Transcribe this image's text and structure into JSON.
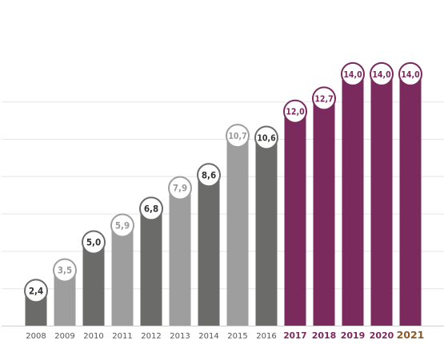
{
  "chart_data": {
    "type": "bar",
    "categories": [
      "2008",
      "2009",
      "2010",
      "2011",
      "2012",
      "2013",
      "2014",
      "2015",
      "2016",
      "2017",
      "2018",
      "2019",
      "2020",
      "2021"
    ],
    "values": [
      2.4,
      3.5,
      5.0,
      5.9,
      6.8,
      7.9,
      8.6,
      10.7,
      10.6,
      12.0,
      12.7,
      14.0,
      14.0,
      14.0
    ],
    "data_labels": [
      "2,4",
      "3,5",
      "5,0",
      "5,9",
      "6,8",
      "7,9",
      "8,6",
      "10,7",
      "10,6",
      "12,0",
      "12,7",
      "14,0",
      "14,0",
      "14,0"
    ],
    "ylim": [
      0,
      14
    ],
    "grid": true,
    "title": "",
    "xlabel": "",
    "ylabel": "",
    "colors": {
      "dark_gray": "#6b6b6a",
      "light_gray": "#9e9e9e",
      "purple": "#7b2a5e",
      "tick_gray": "#555555",
      "tick_purple": "#7b2a5e",
      "tick_2021": "#8a5a2b"
    }
  }
}
